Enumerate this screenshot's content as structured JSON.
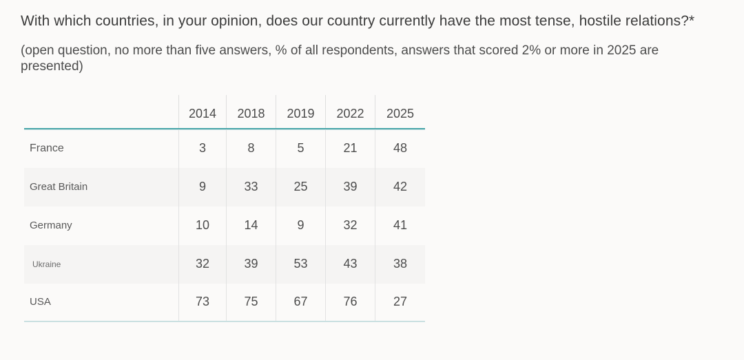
{
  "page": {
    "title": "With which countries, in your opinion, does our country currently have the most tense, hostile relations?*",
    "subtitle": "(open question, no more than five answers, % of all respondents, answers that scored 2% or more in 2025 are presented)"
  },
  "table": {
    "columns": [
      "2014",
      "2018",
      "2019",
      "2022",
      "2025"
    ],
    "rows": [
      {
        "country": "France",
        "values": [
          "3",
          "8",
          "5",
          "21",
          "48"
        ]
      },
      {
        "country": "Great Britain",
        "values": [
          "9",
          "33",
          "25",
          "39",
          "42"
        ]
      },
      {
        "country": "Germany",
        "values": [
          "10",
          "14",
          "9",
          "32",
          "41"
        ]
      },
      {
        "country": "Ukraine",
        "values": [
          "32",
          "39",
          "53",
          "43",
          "38"
        ]
      },
      {
        "country": "USA",
        "values": [
          "73",
          "75",
          "67",
          "76",
          "27"
        ]
      }
    ]
  },
  "colors": {
    "accent_teal": "#49a5a9",
    "row_alt_background": "#f5f4f3",
    "separator_gray": "#dedede"
  },
  "chart_data": {
    "type": "table",
    "title": "With which countries, in your opinion, does our country currently have the most tense, hostile relations?*",
    "subtitle": "(open question, no more than five answers, % of all respondents, answers that scored 2% or more in 2025 are presented)",
    "unit": "% of all respondents",
    "categories": [
      "2014",
      "2018",
      "2019",
      "2022",
      "2025"
    ],
    "series": [
      {
        "name": "France",
        "values": [
          3,
          8,
          5,
          21,
          48
        ]
      },
      {
        "name": "Great Britain",
        "values": [
          9,
          33,
          25,
          39,
          42
        ]
      },
      {
        "name": "Germany",
        "values": [
          10,
          14,
          9,
          32,
          41
        ]
      },
      {
        "name": "Ukraine",
        "values": [
          32,
          39,
          53,
          43,
          38
        ]
      },
      {
        "name": "USA",
        "values": [
          73,
          75,
          67,
          76,
          27
        ]
      }
    ]
  }
}
